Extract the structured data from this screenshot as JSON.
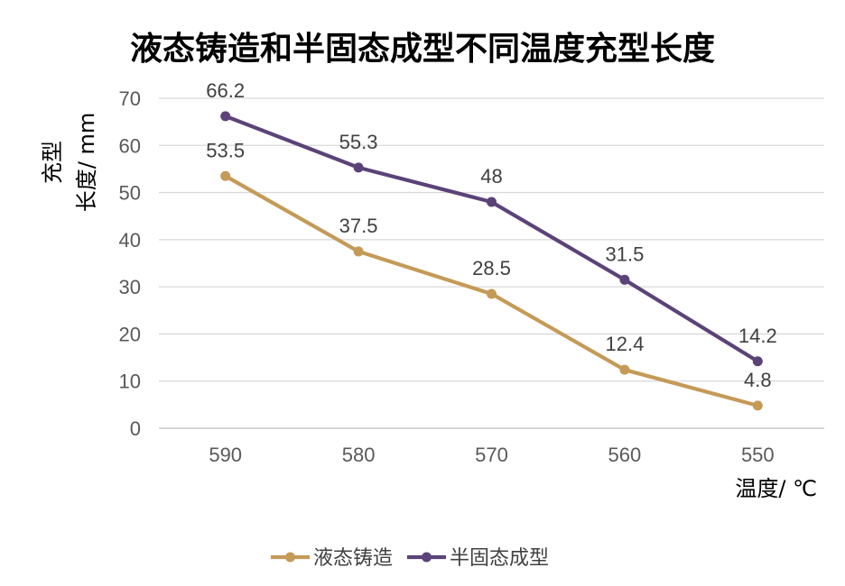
{
  "chart_data": {
    "type": "line",
    "title": "液态铸造和半固态成型不同温度充型长度",
    "xlabel": "温度/ ℃",
    "ylabel_lines": [
      "充型",
      "长度/ mm"
    ],
    "categories": [
      "590",
      "580",
      "570",
      "560",
      "550"
    ],
    "ylim": [
      0,
      70
    ],
    "yticks": [
      "0",
      "10",
      "20",
      "30",
      "40",
      "50",
      "60",
      "70"
    ],
    "grid": true,
    "legend_position": "bottom",
    "series": [
      {
        "name": "液态铸造",
        "color": "#c49a58",
        "values": [
          53.5,
          37.5,
          28.5,
          12.4,
          4.8
        ],
        "labels": [
          "53.5",
          "37.5",
          "28.5",
          "12.4",
          "4.8"
        ]
      },
      {
        "name": "半固态成型",
        "color": "#5b4378",
        "values": [
          66.2,
          55.3,
          48,
          31.5,
          14.2
        ],
        "labels": [
          "66.2",
          "55.3",
          "48",
          "31.5",
          "14.2"
        ]
      }
    ]
  }
}
